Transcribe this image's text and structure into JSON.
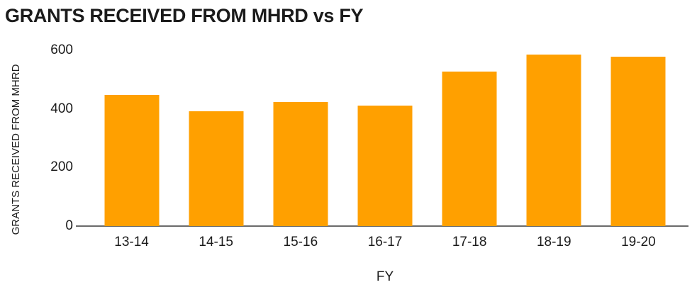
{
  "page": {
    "background": "#ffffff"
  },
  "chart": {
    "title": "GRANTS RECEIVED FROM MHRD vs FY",
    "x_axis_label": "FY",
    "y_axis_label": "GRANTS RECEIVED FROM MHRD"
  },
  "chart_data": {
    "type": "bar",
    "title": "GRANTS RECEIVED FROM MHRD vs FY",
    "xlabel": "FY",
    "ylabel": "GRANTS RECEIVED FROM MHRD",
    "categories": [
      "13-14",
      "14-15",
      "15-16",
      "16-17",
      "17-18",
      "18-19",
      "19-20"
    ],
    "values": [
      448,
      393,
      423,
      411,
      527,
      585,
      578
    ],
    "yticks": [
      0,
      200,
      400,
      600
    ],
    "ylim": [
      0,
      600
    ],
    "grid": false,
    "legend": "none",
    "bar_color": "#FFA000",
    "axis_line_color": "#6B6B6B",
    "text_color": "#1B1B1B"
  }
}
